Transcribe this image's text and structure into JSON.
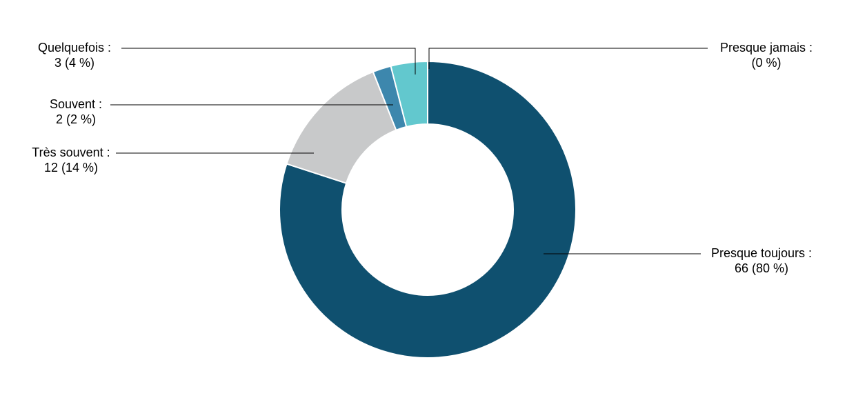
{
  "chart_data": {
    "type": "pie",
    "subtype": "donut",
    "title": "",
    "categories": [
      "Presque toujours",
      "Très souvent",
      "Souvent",
      "Quelquefois",
      "Presque jamais"
    ],
    "values": [
      66,
      12,
      2,
      3,
      0
    ],
    "percentages": [
      80,
      14,
      2,
      4,
      0
    ],
    "colors": [
      "#0f506f",
      "#c8c9ca",
      "#3d87ad",
      "#62c8ce",
      "#0f506f"
    ],
    "start_angle_deg": 0,
    "direction": "clockwise",
    "inner_radius_ratio": 0.58,
    "legend_position": "callouts",
    "background_color": "#ffffff",
    "callouts": [
      {
        "title": "Presque toujours :",
        "value": "66 (80 %)",
        "side": "right"
      },
      {
        "title": "Très souvent :",
        "value": "12 (14 %)",
        "side": "left"
      },
      {
        "title": "Souvent :",
        "value": "2 (2 %)",
        "side": "left"
      },
      {
        "title": "Quelquefois :",
        "value": "3 (4 %)",
        "side": "left"
      },
      {
        "title": "Presque jamais :",
        "value": "(0 %)",
        "side": "right"
      }
    ]
  }
}
